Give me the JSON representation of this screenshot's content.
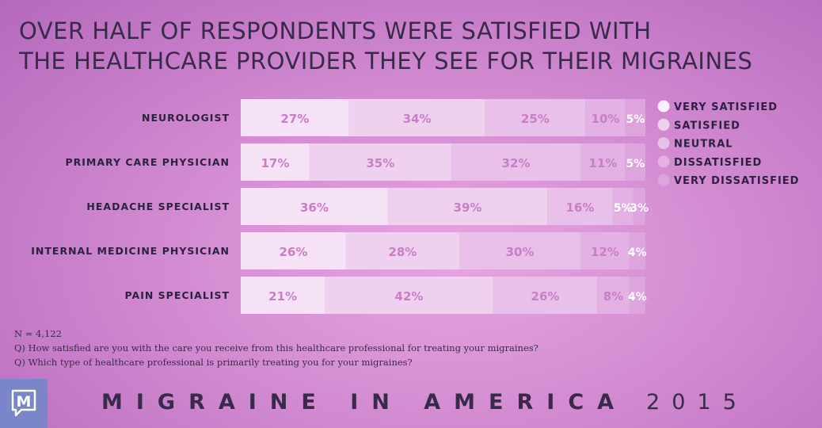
{
  "title_lines": [
    "OVER HALF OF RESPONDENTS WERE SATISFIED WITH",
    "THE HEALTHCARE PROVIDER THEY SEE FOR THEIR MIGRAINES"
  ],
  "chart_data": {
    "type": "bar",
    "orientation": "horizontal",
    "stacked": true,
    "categories": [
      "NEUROLOGIST",
      "PRIMARY CARE PHYSICIAN",
      "HEADACHE SPECIALIST",
      "INTERNAL MEDICINE PHYSICIAN",
      "PAIN SPECIALIST"
    ],
    "series": [
      {
        "name": "VERY SATISFIED",
        "color": "#f6e2f6",
        "values": [
          27,
          17,
          36,
          26,
          21
        ]
      },
      {
        "name": "SATISFIED",
        "color": "#efd1ef",
        "values": [
          34,
          35,
          39,
          28,
          42
        ]
      },
      {
        "name": "NEUTRAL",
        "color": "#e9c0e9",
        "values": [
          25,
          32,
          16,
          30,
          26
        ]
      },
      {
        "name": "DISSATISFIED",
        "color": "#e4b1e4",
        "values": [
          10,
          11,
          5,
          12,
          8
        ]
      },
      {
        "name": "VERY DISSATISFIED",
        "color": "#dda4dd",
        "values": [
          5,
          5,
          3,
          4,
          4
        ]
      }
    ],
    "value_suffix": "%",
    "legend_position": "right",
    "grid": false
  },
  "notes": [
    "N = 4,122",
    "Q) How satisfied are you with the care you receive from this healthcare professional for treating your migraines?",
    "Q) Which type of healthcare professional is primarily treating you for your migraines?"
  ],
  "footer": {
    "logo_letter": "M",
    "brand": "MIGRAINE IN AMERICA",
    "year": "2015",
    "logo_color": "#7a86c9"
  }
}
